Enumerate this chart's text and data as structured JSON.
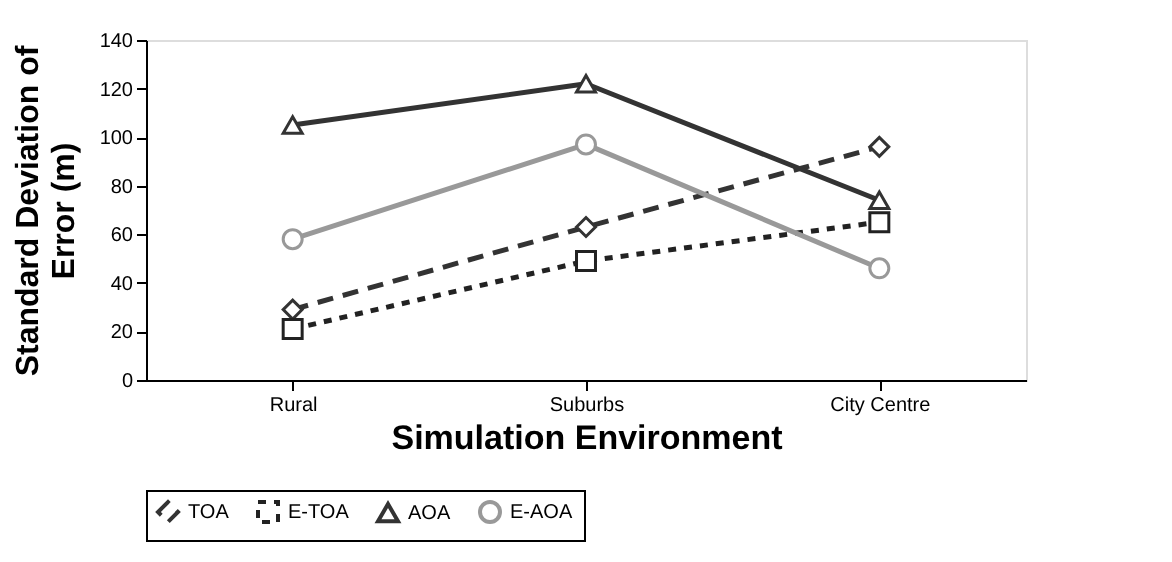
{
  "chart_data": {
    "type": "line",
    "xlabel": "Simulation Environment",
    "ylabel": "Standard Deviation of Error (m)",
    "categories": [
      "Rural",
      "Suburbs",
      "City Centre"
    ],
    "series": [
      {
        "name": "TOA",
        "color": "#333333",
        "marker": "diamond",
        "line_style": "dashed",
        "values": [
          29,
          63,
          96
        ]
      },
      {
        "name": "E-TOA",
        "color": "#222222",
        "marker": "square",
        "line_style": "dotted",
        "values": [
          21,
          49,
          65
        ]
      },
      {
        "name": "AOA",
        "color": "#333333",
        "marker": "triangle",
        "line_style": "solid",
        "values": [
          105,
          122,
          74
        ]
      },
      {
        "name": "E-AOA",
        "color": "#999999",
        "marker": "circle",
        "line_style": "solid",
        "values": [
          58,
          97,
          46
        ]
      }
    ],
    "ylim": [
      0,
      140
    ],
    "yticks": [
      0,
      20,
      40,
      60,
      80,
      100,
      120,
      140
    ],
    "grid": false,
    "legend": "bottom"
  }
}
